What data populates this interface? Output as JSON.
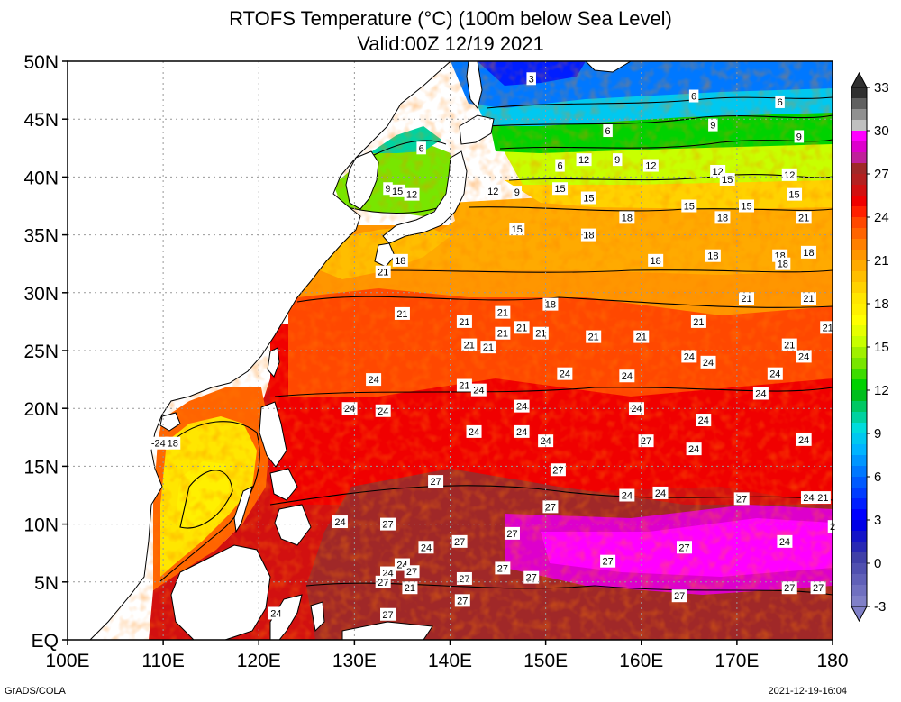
{
  "title": {
    "line1": "RTOFS Temperature (°C) (100m below Sea Level)",
    "line2": "Valid:00Z 12/19 2021"
  },
  "footer": {
    "left": "GrADS/COLA",
    "right": "2021-12-19-16:04"
  },
  "map": {
    "lon_range": [
      100,
      180
    ],
    "lat_range": [
      0,
      50
    ],
    "lon_ticks": [
      {
        "value": 100,
        "label": "100E"
      },
      {
        "value": 110,
        "label": "110E"
      },
      {
        "value": 120,
        "label": "120E"
      },
      {
        "value": 130,
        "label": "130E"
      },
      {
        "value": 140,
        "label": "140E"
      },
      {
        "value": 150,
        "label": "150E"
      },
      {
        "value": 160,
        "label": "160E"
      },
      {
        "value": 170,
        "label": "170E"
      },
      {
        "value": 180,
        "label": "180"
      }
    ],
    "lat_ticks": [
      {
        "value": 0,
        "label": "EQ"
      },
      {
        "value": 5,
        "label": "5N"
      },
      {
        "value": 10,
        "label": "10N"
      },
      {
        "value": 15,
        "label": "15N"
      },
      {
        "value": 20,
        "label": "20N"
      },
      {
        "value": 25,
        "label": "25N"
      },
      {
        "value": 30,
        "label": "30N"
      },
      {
        "value": 35,
        "label": "35N"
      },
      {
        "value": 40,
        "label": "40N"
      },
      {
        "value": 45,
        "label": "45N"
      },
      {
        "value": 50,
        "label": "50N"
      }
    ],
    "grid": true,
    "colors": {
      "land": "#ffffff",
      "coast": "#000000"
    }
  },
  "colorbar": {
    "labels": [
      "33",
      "30",
      "27",
      "24",
      "21",
      "18",
      "15",
      "12",
      "9",
      "6",
      "3",
      "0",
      "-3"
    ],
    "bands": [
      {
        "value": 32.25,
        "color": "#303030"
      },
      {
        "value": 31.5,
        "color": "#606060"
      },
      {
        "value": 30.75,
        "color": "#909090"
      },
      {
        "value": 30,
        "color": "#c0c0c0"
      },
      {
        "value": 29.25,
        "color": "#ff00ff"
      },
      {
        "value": 28.5,
        "color": "#dd00cc"
      },
      {
        "value": 27.75,
        "color": "#c0209a"
      },
      {
        "value": 27,
        "color": "#a02828"
      },
      {
        "value": 26.25,
        "color": "#b42020"
      },
      {
        "value": 25.5,
        "color": "#d21010"
      },
      {
        "value": 24.75,
        "color": "#f00000"
      },
      {
        "value": 24,
        "color": "#ff2000"
      },
      {
        "value": 23.25,
        "color": "#ff4800"
      },
      {
        "value": 22.5,
        "color": "#ff6400"
      },
      {
        "value": 21.75,
        "color": "#ff8000"
      },
      {
        "value": 21,
        "color": "#ff9600"
      },
      {
        "value": 20.25,
        "color": "#ffaa00"
      },
      {
        "value": 19.5,
        "color": "#ffbe00"
      },
      {
        "value": 18.75,
        "color": "#ffd200"
      },
      {
        "value": 18,
        "color": "#ffe600"
      },
      {
        "value": 17.25,
        "color": "#fff000"
      },
      {
        "value": 16.5,
        "color": "#ffff00"
      },
      {
        "value": 15.75,
        "color": "#e6ff00"
      },
      {
        "value": 15,
        "color": "#c8ff00"
      },
      {
        "value": 14.25,
        "color": "#a0f000"
      },
      {
        "value": 13.5,
        "color": "#78e600"
      },
      {
        "value": 12.75,
        "color": "#3cdc00"
      },
      {
        "value": 12,
        "color": "#00d200"
      },
      {
        "value": 11.25,
        "color": "#00be1e"
      },
      {
        "value": 10.5,
        "color": "#00c864"
      },
      {
        "value": 9.75,
        "color": "#00d2a0"
      },
      {
        "value": 9,
        "color": "#00dcdc"
      },
      {
        "value": 8.25,
        "color": "#00c8f0"
      },
      {
        "value": 7.5,
        "color": "#00b4ff"
      },
      {
        "value": 6.75,
        "color": "#0096ff"
      },
      {
        "value": 6,
        "color": "#0078ff"
      },
      {
        "value": 5.25,
        "color": "#005aff"
      },
      {
        "value": 4.5,
        "color": "#003cff"
      },
      {
        "value": 3.75,
        "color": "#001eff"
      },
      {
        "value": 3,
        "color": "#0000ff"
      },
      {
        "value": 2.25,
        "color": "#0000e6"
      },
      {
        "value": 1.5,
        "color": "#1414c8"
      },
      {
        "value": 0.75,
        "color": "#2828b4"
      },
      {
        "value": 0,
        "color": "#4040a8"
      },
      {
        "value": -0.75,
        "color": "#5050b0"
      },
      {
        "value": -1.5,
        "color": "#6060b8"
      },
      {
        "value": -2.25,
        "color": "#7070c0"
      },
      {
        "value": -3,
        "color": "#8080c8"
      }
    ]
  },
  "contour_labels": [
    {
      "lon": 148.5,
      "lat": 48.5,
      "text": "3"
    },
    {
      "lon": 165.5,
      "lat": 47.0,
      "text": "6"
    },
    {
      "lon": 174.5,
      "lat": 46.5,
      "text": "6"
    },
    {
      "lon": 156.5,
      "lat": 44.0,
      "text": "6"
    },
    {
      "lon": 167.5,
      "lat": 44.5,
      "text": "9"
    },
    {
      "lon": 176.5,
      "lat": 43.5,
      "text": "9"
    },
    {
      "lon": 137.0,
      "lat": 42.5,
      "text": "6"
    },
    {
      "lon": 154.0,
      "lat": 41.5,
      "text": "12"
    },
    {
      "lon": 157.5,
      "lat": 41.5,
      "text": "9"
    },
    {
      "lon": 161.0,
      "lat": 41.0,
      "text": "12"
    },
    {
      "lon": 151.5,
      "lat": 41.0,
      "text": "6"
    },
    {
      "lon": 168.0,
      "lat": 40.5,
      "text": "12"
    },
    {
      "lon": 169.0,
      "lat": 39.8,
      "text": "15"
    },
    {
      "lon": 175.5,
      "lat": 40.2,
      "text": "12"
    },
    {
      "lon": 133.5,
      "lat": 39.0,
      "text": "9"
    },
    {
      "lon": 134.5,
      "lat": 38.8,
      "text": "15"
    },
    {
      "lon": 136.0,
      "lat": 38.5,
      "text": "12"
    },
    {
      "lon": 144.5,
      "lat": 38.8,
      "text": "12"
    },
    {
      "lon": 147.0,
      "lat": 38.7,
      "text": "9"
    },
    {
      "lon": 151.5,
      "lat": 39.0,
      "text": "15"
    },
    {
      "lon": 154.5,
      "lat": 38.2,
      "text": "15"
    },
    {
      "lon": 165.0,
      "lat": 37.5,
      "text": "15"
    },
    {
      "lon": 171.0,
      "lat": 37.5,
      "text": "15"
    },
    {
      "lon": 176.0,
      "lat": 38.5,
      "text": "15"
    },
    {
      "lon": 158.5,
      "lat": 36.5,
      "text": "18"
    },
    {
      "lon": 168.5,
      "lat": 36.5,
      "text": "18"
    },
    {
      "lon": 177.0,
      "lat": 36.5,
      "text": "21"
    },
    {
      "lon": 147.0,
      "lat": 35.5,
      "text": "15"
    },
    {
      "lon": 154.5,
      "lat": 35.0,
      "text": "18"
    },
    {
      "lon": 161.5,
      "lat": 32.8,
      "text": "18"
    },
    {
      "lon": 167.5,
      "lat": 33.2,
      "text": "18"
    },
    {
      "lon": 174.5,
      "lat": 33.2,
      "text": "18"
    },
    {
      "lon": 174.8,
      "lat": 32.5,
      "text": "18"
    },
    {
      "lon": 177.5,
      "lat": 33.5,
      "text": "18"
    },
    {
      "lon": 134.8,
      "lat": 32.8,
      "text": "18"
    },
    {
      "lon": 133.0,
      "lat": 31.8,
      "text": "21"
    },
    {
      "lon": 150.5,
      "lat": 29.0,
      "text": "18"
    },
    {
      "lon": 171.0,
      "lat": 29.5,
      "text": "21"
    },
    {
      "lon": 177.5,
      "lat": 29.5,
      "text": "21"
    },
    {
      "lon": 135.0,
      "lat": 28.2,
      "text": "21"
    },
    {
      "lon": 141.5,
      "lat": 27.5,
      "text": "21"
    },
    {
      "lon": 145.5,
      "lat": 28.3,
      "text": "21"
    },
    {
      "lon": 147.5,
      "lat": 27.0,
      "text": "21"
    },
    {
      "lon": 166.0,
      "lat": 27.5,
      "text": "21"
    },
    {
      "lon": 179.5,
      "lat": 27.0,
      "text": "21"
    },
    {
      "lon": 145.5,
      "lat": 26.5,
      "text": "21"
    },
    {
      "lon": 149.5,
      "lat": 26.5,
      "text": "21"
    },
    {
      "lon": 155.0,
      "lat": 26.2,
      "text": "21"
    },
    {
      "lon": 160.0,
      "lat": 26.2,
      "text": "21"
    },
    {
      "lon": 142.0,
      "lat": 25.5,
      "text": "21"
    },
    {
      "lon": 144.0,
      "lat": 25.3,
      "text": "21"
    },
    {
      "lon": 175.5,
      "lat": 25.5,
      "text": "21"
    },
    {
      "lon": 165.0,
      "lat": 24.5,
      "text": "24"
    },
    {
      "lon": 167.0,
      "lat": 24.0,
      "text": "24"
    },
    {
      "lon": 177.0,
      "lat": 24.5,
      "text": "24"
    },
    {
      "lon": 152.0,
      "lat": 23.0,
      "text": "24"
    },
    {
      "lon": 158.5,
      "lat": 22.8,
      "text": "24"
    },
    {
      "lon": 174.0,
      "lat": 23.0,
      "text": "24"
    },
    {
      "lon": 132.0,
      "lat": 22.5,
      "text": "24"
    },
    {
      "lon": 141.5,
      "lat": 22.0,
      "text": "21"
    },
    {
      "lon": 143.0,
      "lat": 21.6,
      "text": "24"
    },
    {
      "lon": 172.5,
      "lat": 21.3,
      "text": "24"
    },
    {
      "lon": 129.5,
      "lat": 20.0,
      "text": "24"
    },
    {
      "lon": 133.0,
      "lat": 19.8,
      "text": "24"
    },
    {
      "lon": 147.5,
      "lat": 20.2,
      "text": "24"
    },
    {
      "lon": 159.5,
      "lat": 20.0,
      "text": "24"
    },
    {
      "lon": 166.5,
      "lat": 19.0,
      "text": "24"
    },
    {
      "lon": 142.5,
      "lat": 18.0,
      "text": "24"
    },
    {
      "lon": 147.5,
      "lat": 18.0,
      "text": "24"
    },
    {
      "lon": 150.0,
      "lat": 17.2,
      "text": "24"
    },
    {
      "lon": 160.5,
      "lat": 17.2,
      "text": "27"
    },
    {
      "lon": 165.5,
      "lat": 16.5,
      "text": "24"
    },
    {
      "lon": 177.0,
      "lat": 17.3,
      "text": "24"
    },
    {
      "lon": 109.5,
      "lat": 17.0,
      "text": "-24"
    },
    {
      "lon": 111.0,
      "lat": 17.0,
      "text": "18"
    },
    {
      "lon": 151.3,
      "lat": 14.7,
      "text": "27"
    },
    {
      "lon": 138.5,
      "lat": 13.7,
      "text": "27"
    },
    {
      "lon": 158.5,
      "lat": 12.5,
      "text": "24"
    },
    {
      "lon": 162.0,
      "lat": 12.7,
      "text": "24"
    },
    {
      "lon": 170.5,
      "lat": 12.2,
      "text": "27"
    },
    {
      "lon": 177.5,
      "lat": 12.3,
      "text": "24"
    },
    {
      "lon": 179.0,
      "lat": 12.3,
      "text": "21"
    },
    {
      "lon": 150.5,
      "lat": 11.5,
      "text": "27"
    },
    {
      "lon": 128.5,
      "lat": 10.2,
      "text": "24"
    },
    {
      "lon": 133.5,
      "lat": 10.0,
      "text": "27"
    },
    {
      "lon": 180.0,
      "lat": 9.8,
      "text": "2"
    },
    {
      "lon": 146.5,
      "lat": 9.2,
      "text": "27"
    },
    {
      "lon": 141.0,
      "lat": 8.5,
      "text": "27"
    },
    {
      "lon": 137.5,
      "lat": 8.0,
      "text": "24"
    },
    {
      "lon": 164.5,
      "lat": 8.0,
      "text": "27"
    },
    {
      "lon": 175.0,
      "lat": 8.5,
      "text": "24"
    },
    {
      "lon": 156.5,
      "lat": 6.8,
      "text": "27"
    },
    {
      "lon": 135.0,
      "lat": 6.5,
      "text": "24"
    },
    {
      "lon": 136.0,
      "lat": 5.9,
      "text": "27"
    },
    {
      "lon": 133.5,
      "lat": 5.8,
      "text": "24"
    },
    {
      "lon": 145.5,
      "lat": 6.2,
      "text": "27"
    },
    {
      "lon": 141.5,
      "lat": 5.3,
      "text": "27"
    },
    {
      "lon": 148.5,
      "lat": 5.4,
      "text": "27"
    },
    {
      "lon": 133.0,
      "lat": 5.0,
      "text": "27"
    },
    {
      "lon": 135.8,
      "lat": 4.5,
      "text": "21"
    },
    {
      "lon": 175.5,
      "lat": 4.5,
      "text": "27"
    },
    {
      "lon": 178.5,
      "lat": 4.5,
      "text": "27"
    },
    {
      "lon": 164.0,
      "lat": 3.8,
      "text": "27"
    },
    {
      "lon": 141.3,
      "lat": 3.4,
      "text": "27"
    },
    {
      "lon": 133.5,
      "lat": 2.2,
      "text": "27"
    },
    {
      "lon": 121.8,
      "lat": 2.3,
      "text": "24"
    }
  ]
}
